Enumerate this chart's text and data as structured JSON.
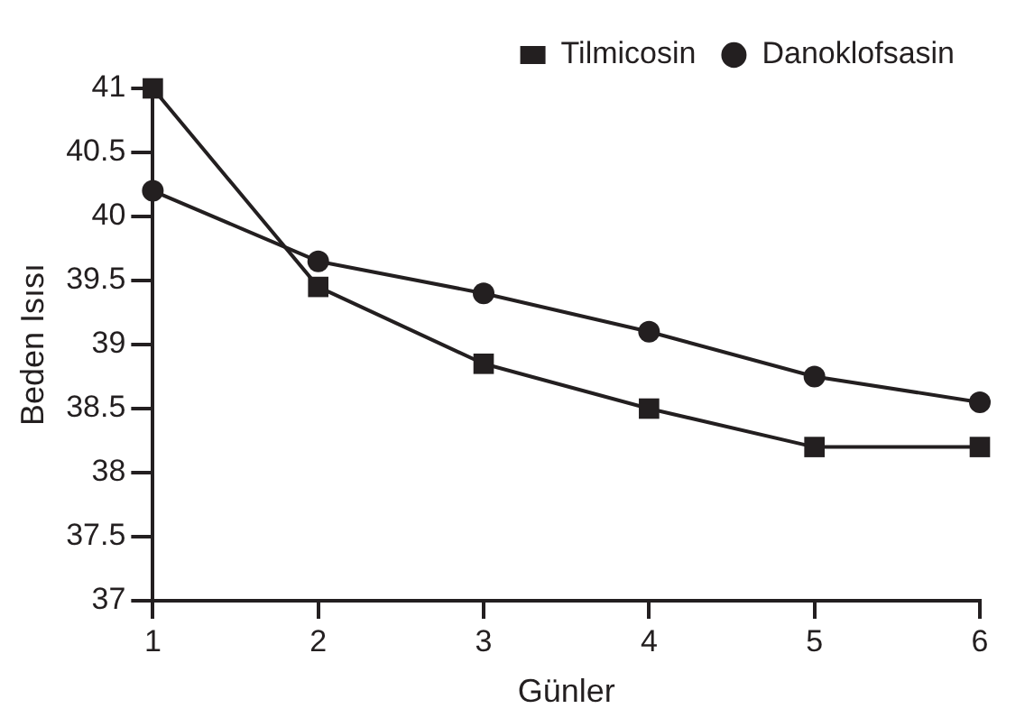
{
  "chart_data": {
    "type": "line",
    "xlabel": "Günler",
    "ylabel": "Beden Isısı",
    "x": [
      1,
      2,
      3,
      4,
      5,
      6
    ],
    "xlim": [
      1,
      6
    ],
    "xticks": [
      1,
      2,
      3,
      4,
      5,
      6
    ],
    "ylim": [
      37,
      41
    ],
    "yticks": [
      37,
      37.5,
      38,
      38.5,
      39,
      39.5,
      40,
      40.5,
      41
    ],
    "grid": false,
    "legend": "top right",
    "series": [
      {
        "name": "Tilmicosin",
        "color": "#231f20",
        "marker": "square",
        "values": [
          41,
          39.45,
          38.85,
          38.5,
          38.2,
          38.2
        ]
      },
      {
        "name": "Danoklofsasin",
        "color": "#231f20",
        "marker": "circle",
        "values": [
          40.2,
          39.65,
          39.4,
          39.1,
          38.75,
          38.55
        ]
      }
    ]
  }
}
